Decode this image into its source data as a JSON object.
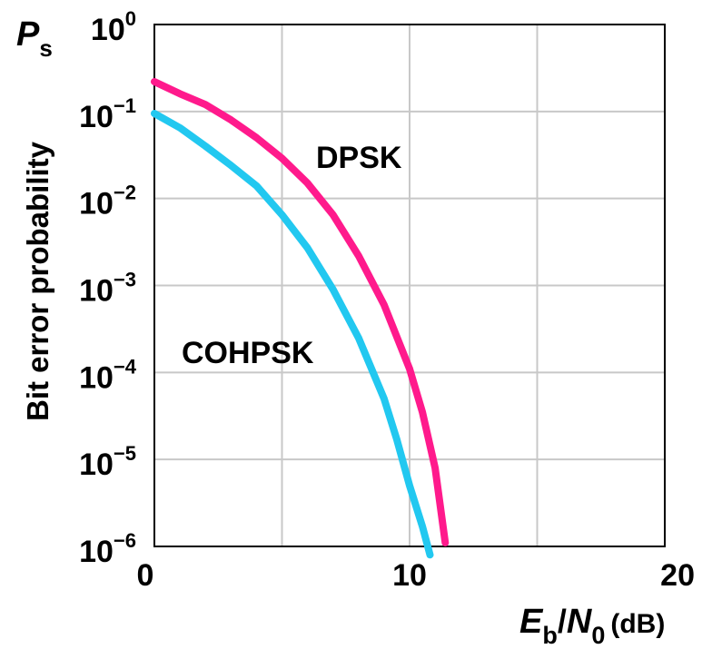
{
  "chart_data": {
    "type": "line",
    "title": "",
    "xlabel": {
      "E": "E",
      "b": "b",
      "N": "N",
      "zero": "0",
      "unit": "(dB)",
      "slash": "/"
    },
    "ylabel": "Bit error probability",
    "corner_label": {
      "P": "P",
      "s": "s"
    },
    "xlim": [
      0,
      20
    ],
    "ylim": [
      1e-06,
      1
    ],
    "yscale": "log",
    "grid": true,
    "x_ticks": [
      "0",
      "10",
      "20"
    ],
    "y_ticks": [
      {
        "base": "10",
        "exp": "0"
      },
      {
        "base": "10",
        "exp": "−1"
      },
      {
        "base": "10",
        "exp": "−2"
      },
      {
        "base": "10",
        "exp": "−3"
      },
      {
        "base": "10",
        "exp": "−4"
      },
      {
        "base": "10",
        "exp": "−5"
      },
      {
        "base": "10",
        "exp": "−6"
      }
    ],
    "series": [
      {
        "name": "DPSK",
        "color": "#ff1a8c",
        "x": [
          0,
          1,
          2,
          3,
          4,
          5,
          6,
          7,
          8,
          9,
          10,
          10.5,
          11,
          11.4
        ],
        "y": [
          0.22,
          0.16,
          0.12,
          0.08,
          0.05,
          0.029,
          0.015,
          0.0065,
          0.0022,
          0.0006,
          0.00011,
          3.5e-05,
          8e-06,
          1.1e-06
        ]
      },
      {
        "name": "COHPSK",
        "color": "#22c8f0",
        "x": [
          0,
          1,
          2,
          3,
          4,
          5,
          6,
          7,
          8,
          9,
          9.5,
          10,
          10.5,
          10.8
        ],
        "y": [
          0.095,
          0.065,
          0.04,
          0.024,
          0.014,
          0.0065,
          0.0027,
          0.0009,
          0.00025,
          5e-05,
          1.7e-05,
          5e-06,
          1.7e-06,
          8e-07
        ]
      }
    ],
    "annotations": [
      "DPSK",
      "COHPSK"
    ]
  }
}
